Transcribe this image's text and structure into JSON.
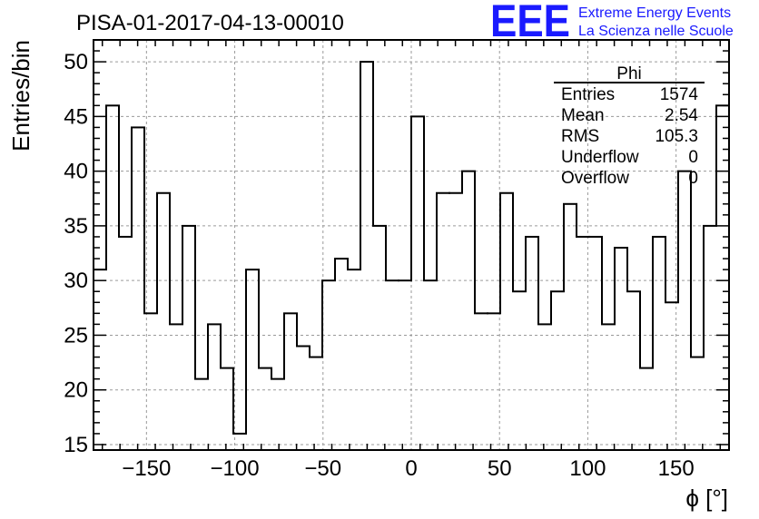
{
  "title": "PISA-01-2017-04-13-00010",
  "logo": {
    "letters": "EEE",
    "line1": "Extreme Energy Events",
    "line2": "La Scienza nelle Scuole",
    "color": "#1a1aff"
  },
  "stats_box": {
    "title": "Phi",
    "rows": [
      {
        "label": "Entries",
        "value": "1574"
      },
      {
        "label": "Mean",
        "value": "2.54"
      },
      {
        "label": "RMS",
        "value": "105.3"
      },
      {
        "label": "Underflow",
        "value": "0"
      },
      {
        "label": "Overflow",
        "value": "0"
      }
    ]
  },
  "chart_data": {
    "type": "histogram",
    "xlabel": "ϕ [°]",
    "ylabel": "Entries/bin",
    "xlim": [
      -180,
      180
    ],
    "ylim": [
      14.5,
      52
    ],
    "x_ticks": [
      -150,
      -100,
      -50,
      0,
      50,
      100,
      150
    ],
    "x_tick_labels": [
      "−150",
      "−100",
      "−50",
      "0",
      "50",
      "100",
      "150"
    ],
    "y_ticks": [
      15,
      20,
      25,
      30,
      35,
      40,
      45,
      50
    ],
    "y_tick_labels": [
      "15",
      "20",
      "25",
      "30",
      "35",
      "40",
      "45",
      "50"
    ],
    "grid": true,
    "bin_width": 7.2,
    "values": [
      31,
      46,
      34,
      44,
      27,
      38,
      26,
      35,
      21,
      26,
      22,
      16,
      31,
      22,
      21,
      27,
      24,
      23,
      30,
      32,
      31,
      50,
      35,
      30,
      30,
      45,
      30,
      38,
      38,
      40,
      27,
      27,
      38,
      29,
      34,
      26,
      29,
      37,
      34,
      34,
      26,
      33,
      29,
      22,
      34,
      28,
      40,
      23,
      35,
      46
    ],
    "line_color": "#000000"
  }
}
